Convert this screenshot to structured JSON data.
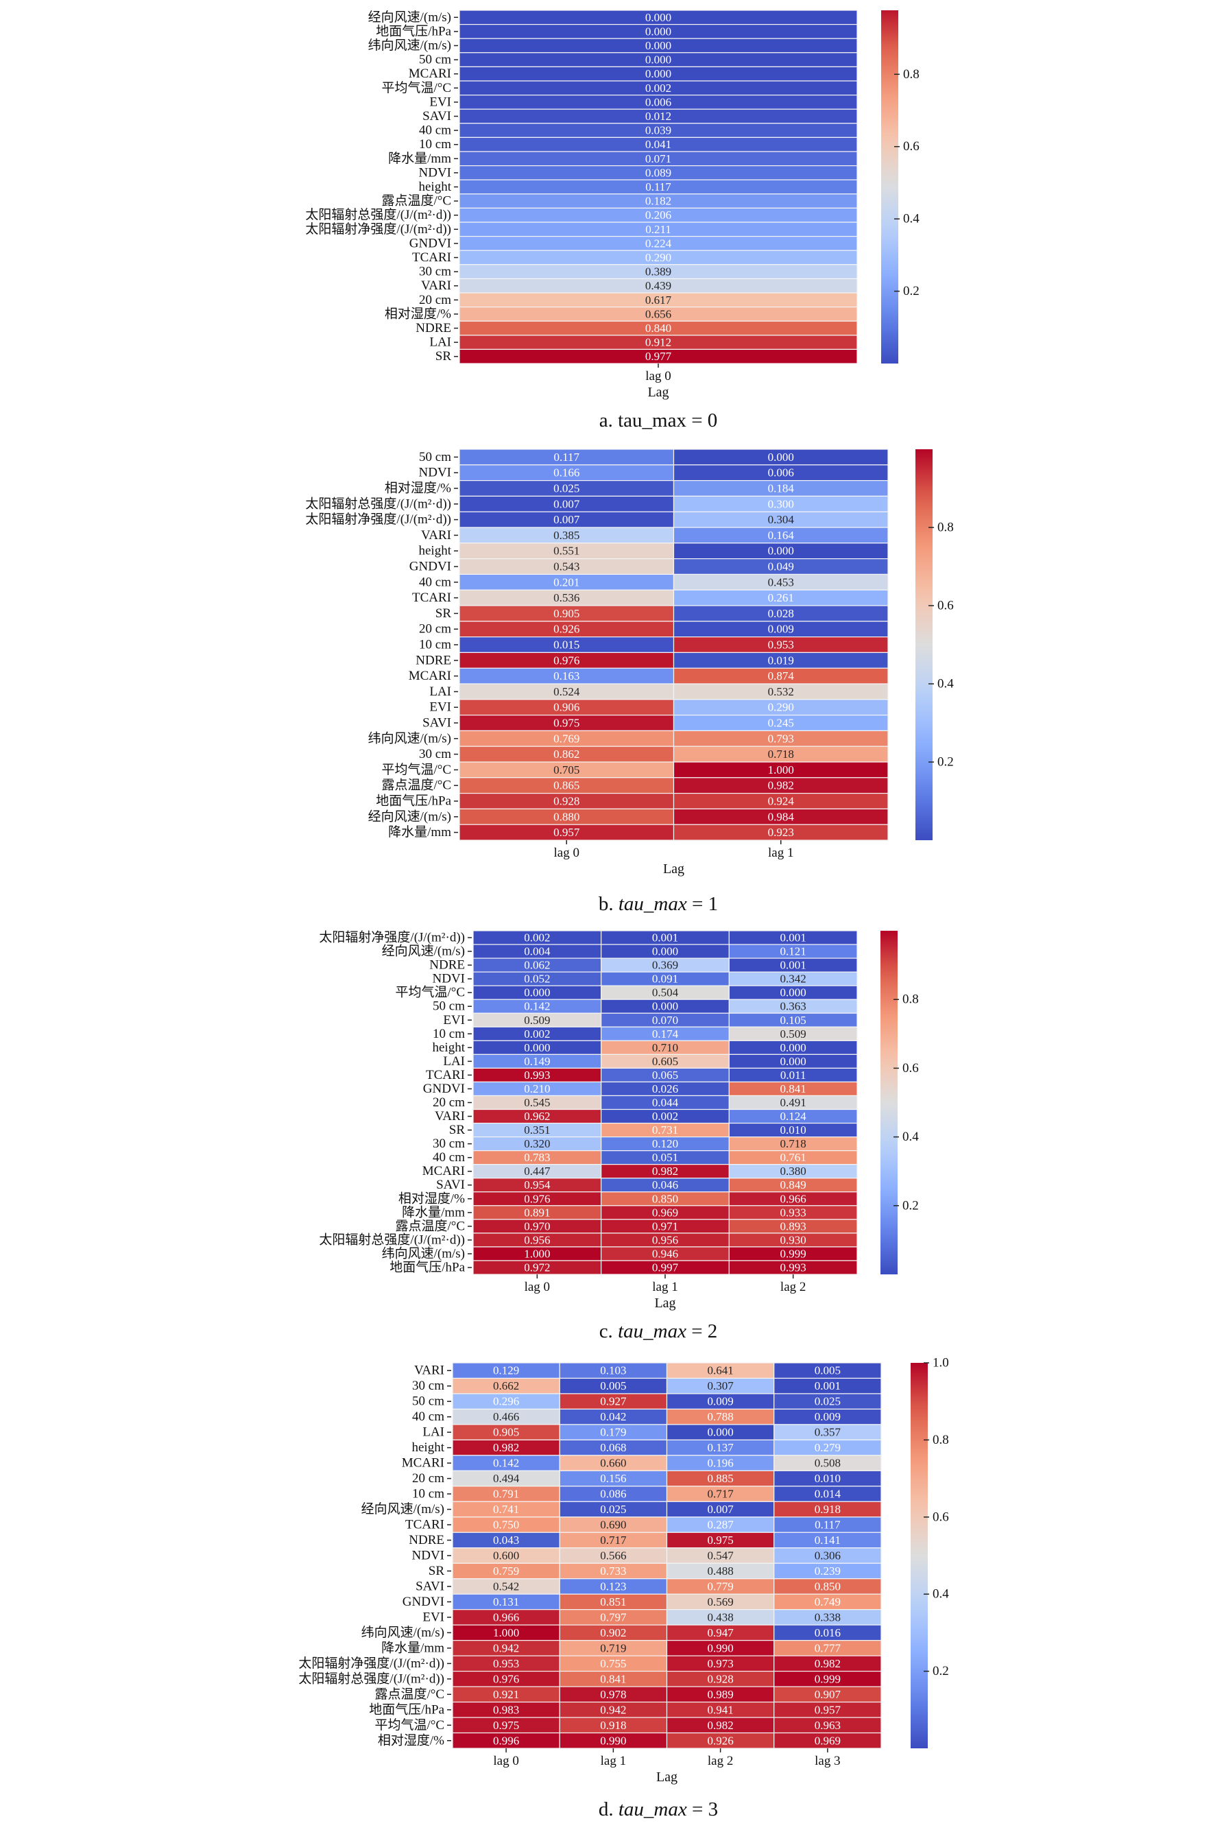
{
  "chart_data": [
    {
      "type": "heatmap",
      "caption_prefix": "a. ",
      "caption_var": "tau_max",
      "caption_var_italic": false,
      "caption_suffix": " = 0",
      "xlabel": "Lag",
      "columns": [
        "lag 0"
      ],
      "colorbar_ticks": [
        0.2,
        0.4,
        0.6,
        0.8
      ],
      "colorbar_range": [
        0.0,
        0.977
      ],
      "colormap": "coolwarm",
      "rows": [
        {
          "label": "经向风速/(m/s)",
          "values": [
            0.0
          ]
        },
        {
          "label": "地面气压/hPa",
          "values": [
            0.0
          ]
        },
        {
          "label": "纬向风速/(m/s)",
          "values": [
            0.0
          ]
        },
        {
          "label": "50 cm",
          "values": [
            0.0
          ]
        },
        {
          "label": "MCARI",
          "values": [
            0.0
          ]
        },
        {
          "label": "平均气温/°C",
          "values": [
            0.002
          ]
        },
        {
          "label": "EVI",
          "values": [
            0.006
          ]
        },
        {
          "label": "SAVI",
          "values": [
            0.012
          ]
        },
        {
          "label": "40 cm",
          "values": [
            0.039
          ]
        },
        {
          "label": "10 cm",
          "values": [
            0.041
          ]
        },
        {
          "label": "降水量/mm",
          "values": [
            0.071
          ]
        },
        {
          "label": "NDVI",
          "values": [
            0.089
          ]
        },
        {
          "label": "height",
          "values": [
            0.117
          ]
        },
        {
          "label": "露点温度/°C",
          "values": [
            0.182
          ]
        },
        {
          "label": "太阳辐射总强度/(J/(m²·d))",
          "values": [
            0.206
          ]
        },
        {
          "label": "太阳辐射净强度/(J/(m²·d))",
          "values": [
            0.211
          ]
        },
        {
          "label": "GNDVI",
          "values": [
            0.224
          ]
        },
        {
          "label": "TCARI",
          "values": [
            0.29
          ]
        },
        {
          "label": "30 cm",
          "values": [
            0.389
          ]
        },
        {
          "label": "VARI",
          "values": [
            0.439
          ]
        },
        {
          "label": "20 cm",
          "values": [
            0.617
          ]
        },
        {
          "label": "相对湿度/%",
          "values": [
            0.656
          ]
        },
        {
          "label": "NDRE",
          "values": [
            0.84
          ]
        },
        {
          "label": "LAI",
          "values": [
            0.912
          ]
        },
        {
          "label": "SR",
          "values": [
            0.977
          ]
        }
      ]
    },
    {
      "type": "heatmap",
      "caption_prefix": "b. ",
      "caption_var": "tau_max",
      "caption_var_italic": true,
      "caption_suffix": " = 1",
      "xlabel": "Lag",
      "columns": [
        "lag 0",
        "lag 1"
      ],
      "colorbar_ticks": [
        0.2,
        0.4,
        0.6,
        0.8
      ],
      "colorbar_range": [
        0.0,
        1.0
      ],
      "colormap": "coolwarm",
      "rows": [
        {
          "label": "50 cm",
          "values": [
            0.117,
            0.0
          ]
        },
        {
          "label": "NDVI",
          "values": [
            0.166,
            0.006
          ]
        },
        {
          "label": "相对湿度/%",
          "values": [
            0.025,
            0.184
          ]
        },
        {
          "label": "太阳辐射总强度/(J/(m²·d))",
          "values": [
            0.007,
            0.3
          ]
        },
        {
          "label": "太阳辐射净强度/(J/(m²·d))",
          "values": [
            0.007,
            0.304
          ]
        },
        {
          "label": "VARI",
          "values": [
            0.385,
            0.164
          ]
        },
        {
          "label": "height",
          "values": [
            0.551,
            0.0
          ]
        },
        {
          "label": "GNDVI",
          "values": [
            0.543,
            0.049
          ]
        },
        {
          "label": "40 cm",
          "values": [
            0.201,
            0.453
          ]
        },
        {
          "label": "TCARI",
          "values": [
            0.536,
            0.261
          ]
        },
        {
          "label": "SR",
          "values": [
            0.905,
            0.028
          ]
        },
        {
          "label": "20 cm",
          "values": [
            0.926,
            0.009
          ]
        },
        {
          "label": "10 cm",
          "values": [
            0.015,
            0.953
          ]
        },
        {
          "label": "NDRE",
          "values": [
            0.976,
            0.019
          ]
        },
        {
          "label": "MCARI",
          "values": [
            0.163,
            0.874
          ]
        },
        {
          "label": "LAI",
          "values": [
            0.524,
            0.532
          ]
        },
        {
          "label": "EVI",
          "values": [
            0.906,
            0.29
          ]
        },
        {
          "label": "SAVI",
          "values": [
            0.975,
            0.245
          ]
        },
        {
          "label": "纬向风速/(m/s)",
          "values": [
            0.769,
            0.793
          ]
        },
        {
          "label": "30 cm",
          "values": [
            0.862,
            0.718
          ]
        },
        {
          "label": "平均气温/°C",
          "values": [
            0.705,
            1.0
          ]
        },
        {
          "label": "露点温度/°C",
          "values": [
            0.865,
            0.982
          ]
        },
        {
          "label": "地面气压/hPa",
          "values": [
            0.928,
            0.924
          ]
        },
        {
          "label": "经向风速/(m/s)",
          "values": [
            0.88,
            0.984
          ]
        },
        {
          "label": "降水量/mm",
          "values": [
            0.957,
            0.923
          ]
        }
      ]
    },
    {
      "type": "heatmap",
      "caption_prefix": "c. ",
      "caption_var": "tau_max",
      "caption_var_italic": true,
      "caption_suffix": " = 2",
      "xlabel": "Lag",
      "columns": [
        "lag 0",
        "lag 1",
        "lag 2"
      ],
      "colorbar_ticks": [
        0.2,
        0.4,
        0.6,
        0.8
      ],
      "colorbar_range": [
        0.0,
        1.0
      ],
      "colormap": "coolwarm",
      "rows": [
        {
          "label": "太阳辐射净强度/(J/(m²·d))",
          "values": [
            0.002,
            0.001,
            0.001
          ]
        },
        {
          "label": "经向风速/(m/s)",
          "values": [
            0.004,
            0.0,
            0.121
          ]
        },
        {
          "label": "NDRE",
          "values": [
            0.062,
            0.369,
            0.001
          ]
        },
        {
          "label": "NDVI",
          "values": [
            0.052,
            0.091,
            0.342
          ]
        },
        {
          "label": "平均气温/°C",
          "values": [
            0.0,
            0.504,
            0.0
          ]
        },
        {
          "label": "50 cm",
          "values": [
            0.142,
            0.0,
            0.363
          ]
        },
        {
          "label": "EVI",
          "values": [
            0.509,
            0.07,
            0.105
          ]
        },
        {
          "label": "10 cm",
          "values": [
            0.002,
            0.174,
            0.509
          ]
        },
        {
          "label": "height",
          "values": [
            0.0,
            0.71,
            0.0
          ]
        },
        {
          "label": "LAI",
          "values": [
            0.149,
            0.605,
            0.0
          ]
        },
        {
          "label": "TCARI",
          "values": [
            0.993,
            0.065,
            0.011
          ]
        },
        {
          "label": "GNDVI",
          "values": [
            0.21,
            0.026,
            0.841
          ]
        },
        {
          "label": "20 cm",
          "values": [
            0.545,
            0.044,
            0.491
          ]
        },
        {
          "label": "VARI",
          "values": [
            0.962,
            0.002,
            0.124
          ]
        },
        {
          "label": "SR",
          "values": [
            0.351,
            0.731,
            0.01
          ]
        },
        {
          "label": "30 cm",
          "values": [
            0.32,
            0.12,
            0.718
          ]
        },
        {
          "label": "40 cm",
          "values": [
            0.783,
            0.051,
            0.761
          ]
        },
        {
          "label": "MCARI",
          "values": [
            0.447,
            0.982,
            0.38
          ]
        },
        {
          "label": "SAVI",
          "values": [
            0.954,
            0.046,
            0.849
          ]
        },
        {
          "label": "相对湿度/%",
          "values": [
            0.976,
            0.85,
            0.966
          ]
        },
        {
          "label": "降水量/mm",
          "values": [
            0.891,
            0.969,
            0.933
          ]
        },
        {
          "label": "露点温度/°C",
          "values": [
            0.97,
            0.971,
            0.893
          ]
        },
        {
          "label": "太阳辐射总强度/(J/(m²·d))",
          "values": [
            0.956,
            0.956,
            0.93
          ]
        },
        {
          "label": "纬向风速/(m/s)",
          "values": [
            1.0,
            0.946,
            0.999
          ]
        },
        {
          "label": "地面气压/hPa",
          "values": [
            0.972,
            0.997,
            0.993
          ]
        }
      ]
    },
    {
      "type": "heatmap",
      "caption_prefix": "d. ",
      "caption_var": "tau_max",
      "caption_var_italic": true,
      "caption_suffix": " = 3",
      "xlabel": "Lag",
      "columns": [
        "lag 0",
        "lag 1",
        "lag 2",
        "lag 3"
      ],
      "colorbar_ticks": [
        0.2,
        0.4,
        0.6,
        0.8,
        1.0
      ],
      "colorbar_range": [
        0.0,
        1.0
      ],
      "colormap": "coolwarm",
      "rows": [
        {
          "label": "VARI",
          "values": [
            0.129,
            0.103,
            0.641,
            0.005
          ]
        },
        {
          "label": "30 cm",
          "values": [
            0.662,
            0.005,
            0.307,
            0.001
          ]
        },
        {
          "label": "50 cm",
          "values": [
            0.296,
            0.927,
            0.009,
            0.025
          ]
        },
        {
          "label": "40 cm",
          "values": [
            0.466,
            0.042,
            0.788,
            0.009
          ]
        },
        {
          "label": "LAI",
          "values": [
            0.905,
            0.179,
            0.0,
            0.357
          ]
        },
        {
          "label": "height",
          "values": [
            0.982,
            0.068,
            0.137,
            0.279
          ]
        },
        {
          "label": "MCARI",
          "values": [
            0.142,
            0.66,
            0.196,
            0.508
          ]
        },
        {
          "label": "20 cm",
          "values": [
            0.494,
            0.156,
            0.885,
            0.01
          ]
        },
        {
          "label": "10 cm",
          "values": [
            0.791,
            0.086,
            0.717,
            0.014
          ]
        },
        {
          "label": "经向风速/(m/s)",
          "values": [
            0.741,
            0.025,
            0.007,
            0.918
          ]
        },
        {
          "label": "TCARI",
          "values": [
            0.75,
            0.69,
            0.287,
            0.117
          ]
        },
        {
          "label": "NDRE",
          "values": [
            0.043,
            0.717,
            0.975,
            0.141
          ]
        },
        {
          "label": "NDVI",
          "values": [
            0.6,
            0.566,
            0.547,
            0.306
          ]
        },
        {
          "label": "SR",
          "values": [
            0.759,
            0.733,
            0.488,
            0.239
          ]
        },
        {
          "label": "SAVI",
          "values": [
            0.542,
            0.123,
            0.779,
            0.85
          ]
        },
        {
          "label": "GNDVI",
          "values": [
            0.131,
            0.851,
            0.569,
            0.749
          ]
        },
        {
          "label": "EVI",
          "values": [
            0.966,
            0.797,
            0.438,
            0.338
          ]
        },
        {
          "label": "纬向风速/(m/s)",
          "values": [
            1.0,
            0.902,
            0.947,
            0.016
          ]
        },
        {
          "label": "降水量/mm",
          "values": [
            0.942,
            0.719,
            0.99,
            0.777
          ]
        },
        {
          "label": "太阳辐射净强度/(J/(m²·d))",
          "values": [
            0.953,
            0.755,
            0.973,
            0.982
          ]
        },
        {
          "label": "太阳辐射总强度/(J/(m²·d))",
          "values": [
            0.976,
            0.841,
            0.928,
            0.999
          ]
        },
        {
          "label": "露点温度/°C",
          "values": [
            0.921,
            0.978,
            0.989,
            0.907
          ]
        },
        {
          "label": "地面气压/hPa",
          "values": [
            0.983,
            0.942,
            0.941,
            0.957
          ]
        },
        {
          "label": "平均气温/°C",
          "values": [
            0.975,
            0.918,
            0.982,
            0.963
          ]
        },
        {
          "label": "相对湿度/%",
          "values": [
            0.996,
            0.99,
            0.926,
            0.969
          ]
        }
      ]
    }
  ]
}
